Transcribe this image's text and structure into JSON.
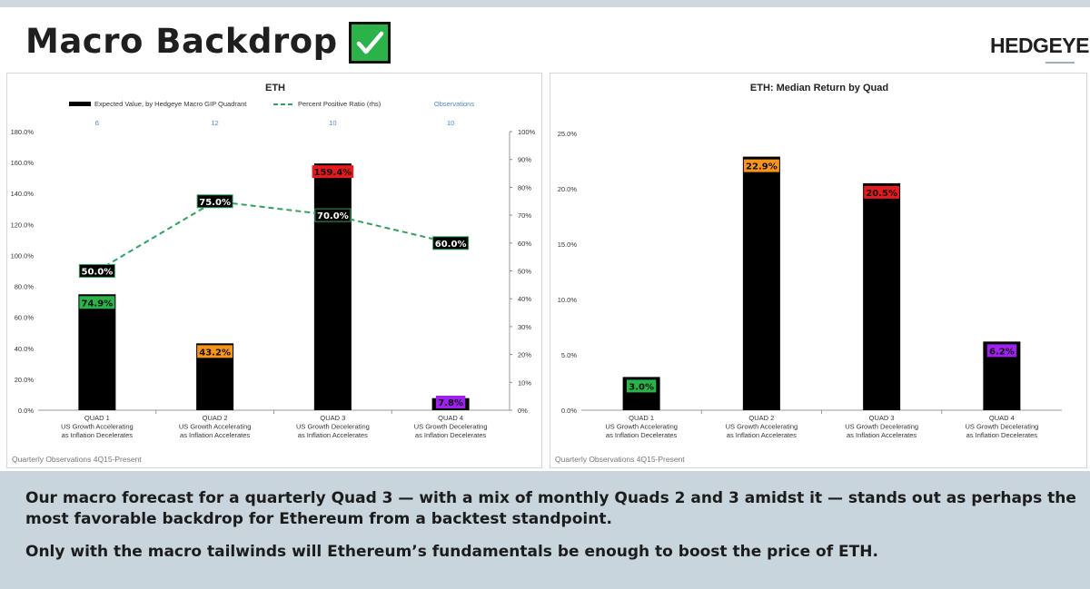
{
  "slide": {
    "title": "Macro Backdrop =",
    "brand": "HEDGEYE",
    "checkbox_icon": "green-checkbox-icon",
    "paragraphs": [
      "Our macro forecast for a quarterly Quad 3 — with a mix of monthly Quads 2 and 3 amidst it — stands out as perhaps the most favorable backdrop for Ethereum from a backtest standpoint.",
      "Only with the macro tailwinds will Ethereum’s fundamentals be enough to boost the price of ETH."
    ]
  },
  "colors": {
    "bar": "#000000",
    "line": "#2ca25f",
    "quad1": "#2bb34a",
    "quad2": "#f7941d",
    "quad3": "#e41a1c",
    "quad4": "#a020f0",
    "observations": "#4a86c8",
    "bottom_band": "#c9d5dc"
  },
  "chart_data": [
    {
      "type": "bar",
      "title": "ETH",
      "categories": [
        [
          "QUAD 1",
          "US Growth Accelerating",
          "as Inflation Decelerates"
        ],
        [
          "QUAD 2",
          "US Growth Accelerating",
          "as Inflation Accelerates"
        ],
        [
          "QUAD 3",
          "US Growth Decelerating",
          "as Inflation Accelerates"
        ],
        [
          "QUAD 4",
          "US Growth Decelerating",
          "as Inflation Decelerates"
        ]
      ],
      "series": [
        {
          "name": "Expected Value, by Hedgeye Macro GIP Quadrant",
          "type": "bar",
          "axis": "left",
          "values": [
            74.9,
            43.2,
            159.4,
            7.8
          ],
          "labels": [
            "74.9%",
            "43.2%",
            "159.4%",
            "7.8%"
          ]
        },
        {
          "name": "Percent Positive Ratio (rhs)",
          "type": "line",
          "style": "dashed",
          "axis": "right",
          "values": [
            50.0,
            75.0,
            70.0,
            60.0
          ],
          "labels": [
            "50.0%",
            "75.0%",
            "70.0%",
            "60.0%"
          ]
        }
      ],
      "observations_label": "Observations",
      "observations": [
        "6",
        "12",
        "10",
        "10"
      ],
      "ylim": [
        0,
        180
      ],
      "yticks": [
        "0.0%",
        "20.0%",
        "40.0%",
        "60.0%",
        "80.0%",
        "100.0%",
        "120.0%",
        "140.0%",
        "160.0%",
        "180.0%"
      ],
      "y2lim": [
        0,
        100
      ],
      "y2ticks": [
        "0%",
        "10%",
        "20%",
        "30%",
        "40%",
        "50%",
        "60%",
        "70%",
        "80%",
        "90%",
        "100%"
      ],
      "footnote": "Quarterly Observations 4Q15-Present",
      "legend_position": "top"
    },
    {
      "type": "bar",
      "title": "ETH: Median Return by Quad",
      "categories": [
        [
          "QUAD 1",
          "US Growth Accelerating",
          "as Inflation Decelerates"
        ],
        [
          "QUAD 2",
          "US Growth Accelerating",
          "as Inflation Accelerates"
        ],
        [
          "QUAD 3",
          "US Growth Decelerating",
          "as Inflation Accelerates"
        ],
        [
          "QUAD 4",
          "US Growth Decelerating",
          "as Inflation Decelerates"
        ]
      ],
      "values": [
        3.0,
        22.9,
        20.5,
        6.2
      ],
      "labels": [
        "3.0%",
        "22.9%",
        "20.5%",
        "6.2%"
      ],
      "ylim": [
        0,
        25
      ],
      "yticks": [
        "0.0%",
        "5.0%",
        "10.0%",
        "15.0%",
        "20.0%",
        "25.0%"
      ],
      "footnote": "Quarterly Observations 4Q15-Present"
    }
  ]
}
